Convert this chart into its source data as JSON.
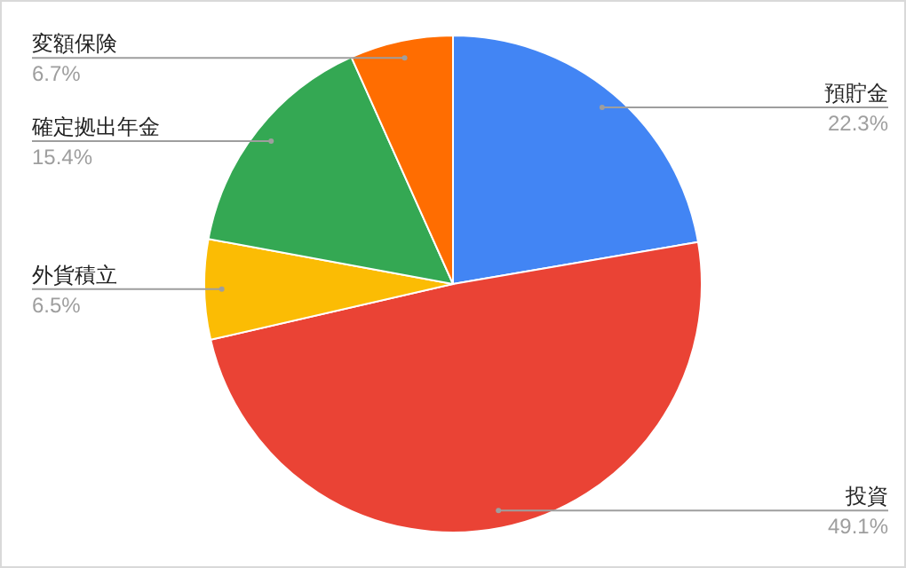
{
  "chart_data": {
    "type": "pie",
    "categories": [
      "預貯金",
      "投資",
      "外貨積立",
      "確定拠出年金",
      "変額保険"
    ],
    "values": [
      22.3,
      49.1,
      6.5,
      15.4,
      6.7
    ],
    "colors": [
      "#4285f4",
      "#ea4335",
      "#fbbc04",
      "#34a853",
      "#ff6d01"
    ],
    "value_labels": [
      "22.3%",
      "49.1%",
      "6.5%",
      "15.4%",
      "6.7%"
    ]
  }
}
